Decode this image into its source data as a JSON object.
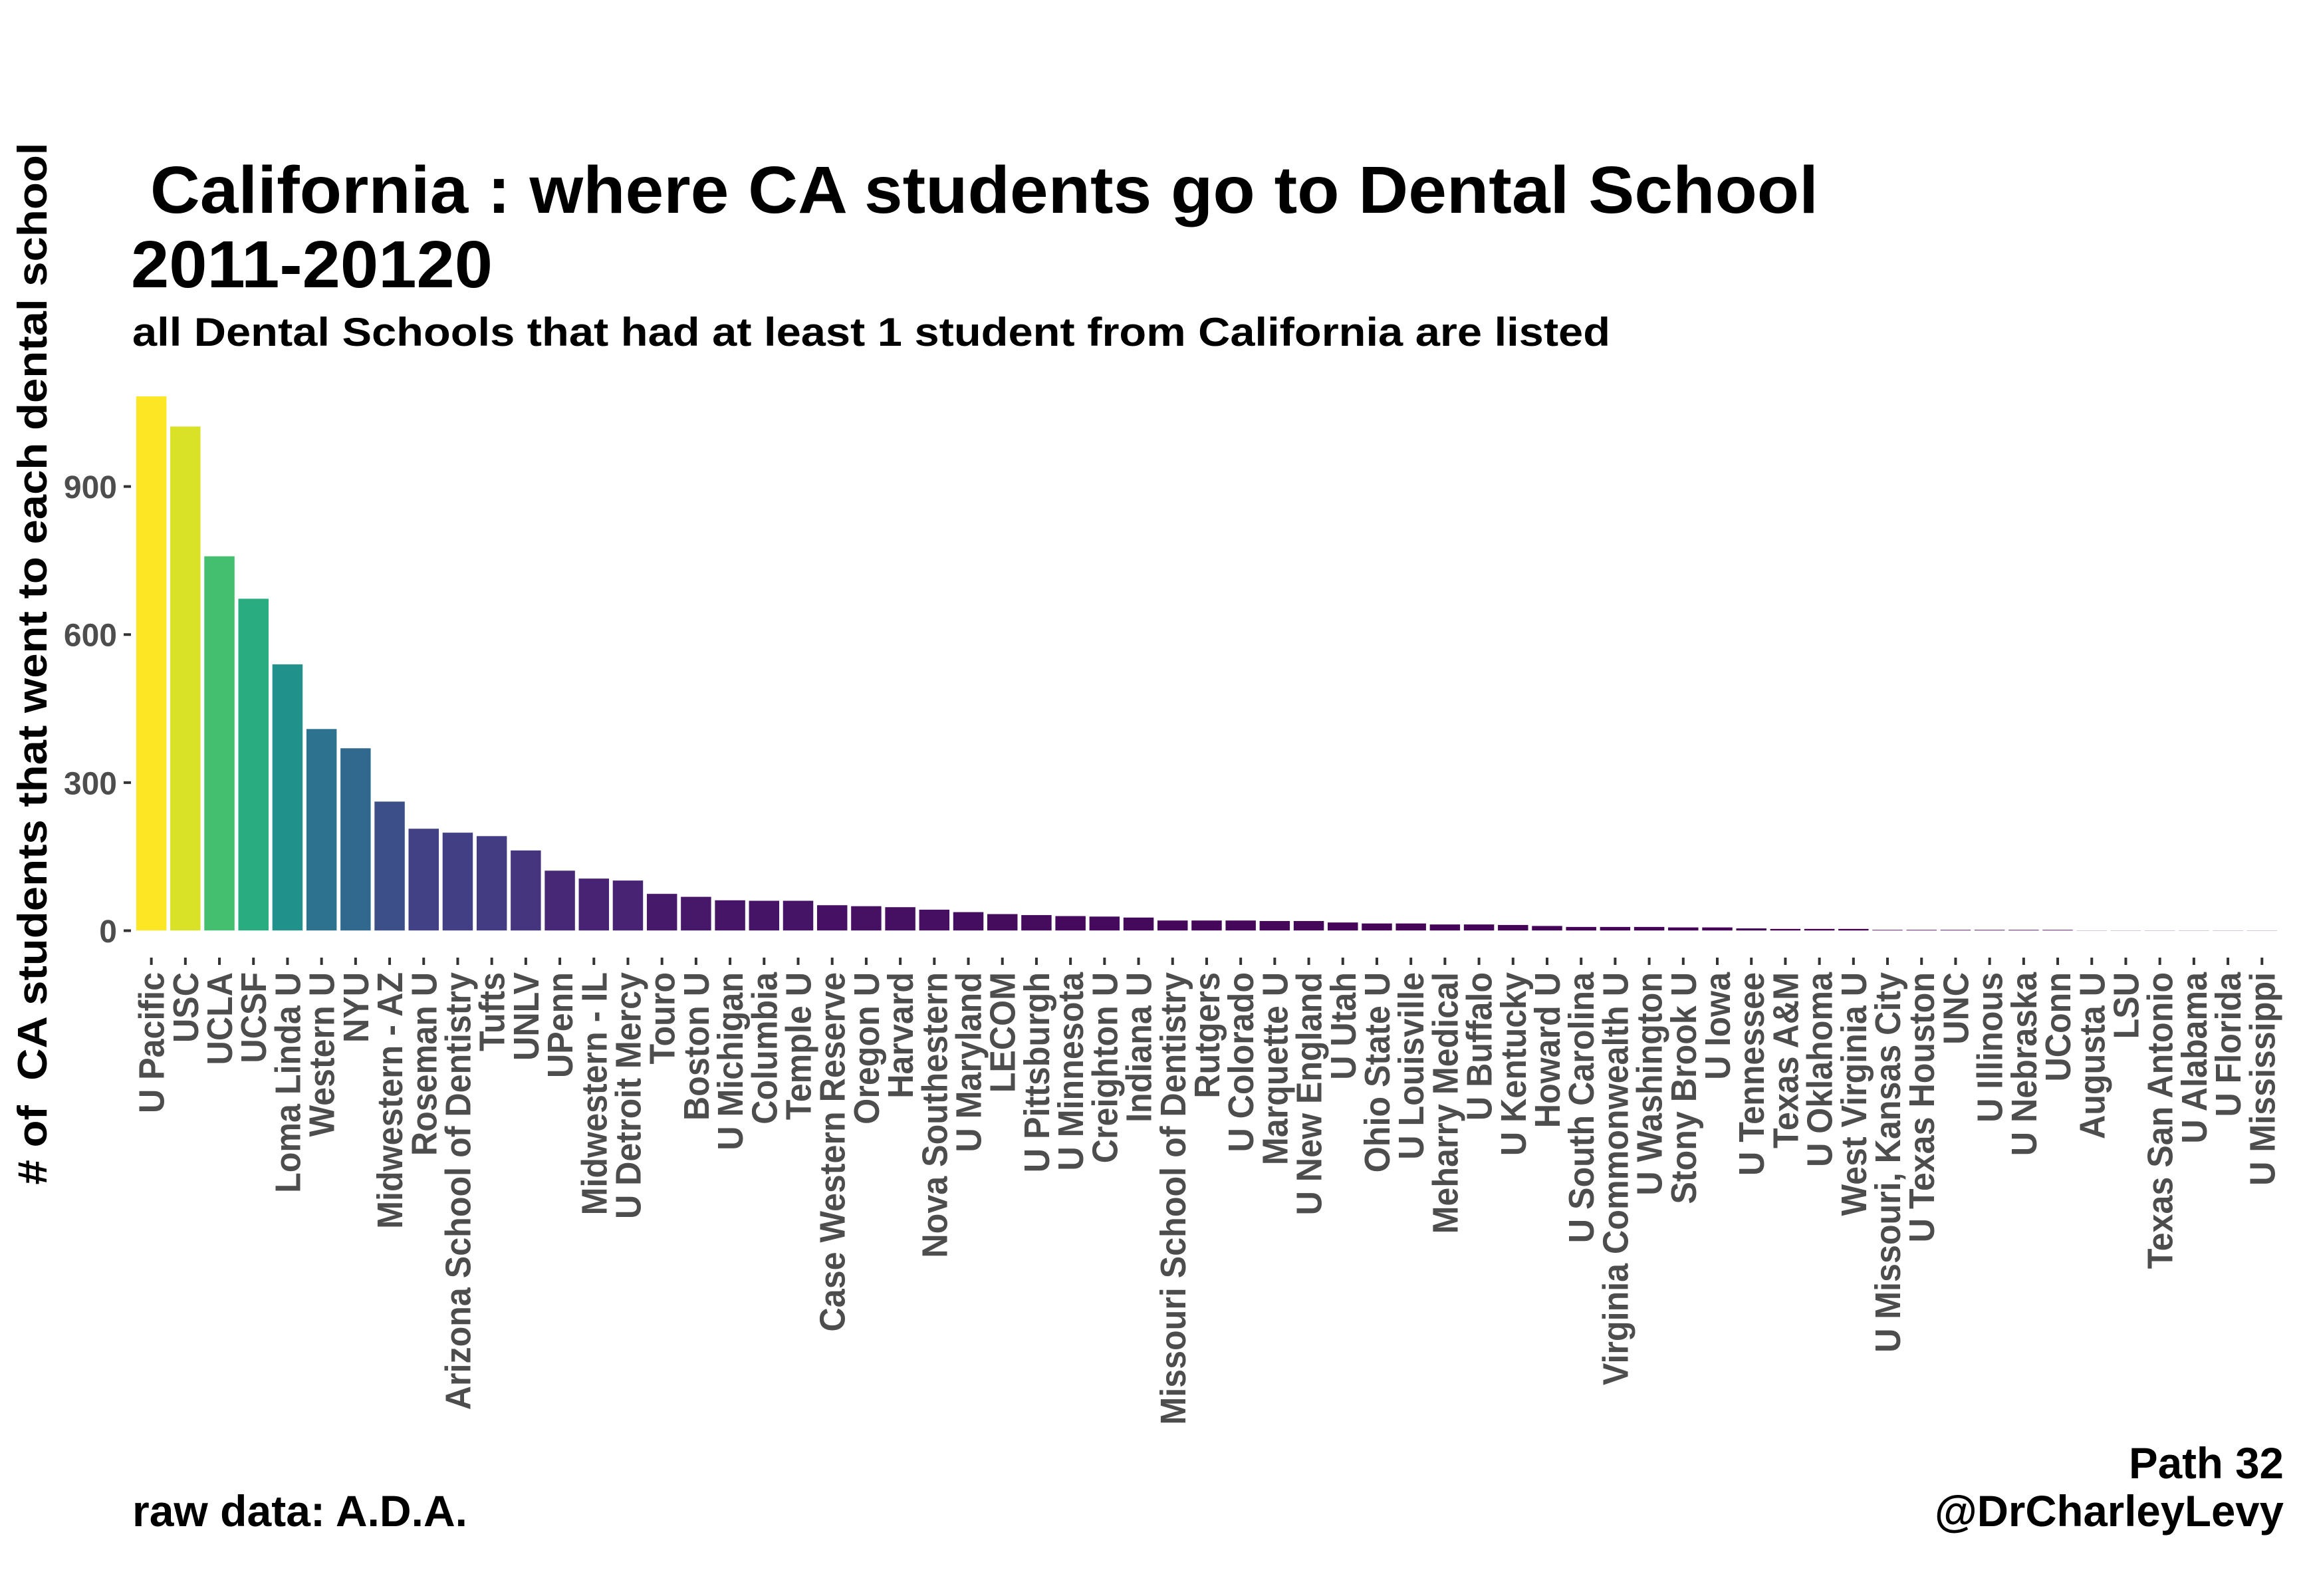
{
  "chart_data": {
    "type": "bar",
    "title": " California : where CA students go to Dental School",
    "title_line2": "2011-20120",
    "subtitle": "all Dental Schools that had at least 1 student from California are listed",
    "xlabel": "",
    "ylabel": "# of  CA students that went to each dental school",
    "ylim": [
      0,
      1083
    ],
    "yticks": [
      0,
      300,
      600,
      900
    ],
    "grid": false,
    "legend": "none",
    "colormap": [
      "#440154",
      "#482475",
      "#414487",
      "#355F8D",
      "#2A788E",
      "#21918C",
      "#22A884",
      "#44BF70",
      "#7AD151",
      "#BDDF26",
      "#FDE725"
    ],
    "categories": [
      "U Pacific",
      "USC",
      "UCLA",
      "UCSF",
      "Loma Linda U",
      "Western U",
      "NYU",
      "Midwestern - AZ",
      "Roseman U",
      "Arizona School of Dentistry",
      "Tufts",
      "UNLV",
      "UPenn",
      "Midwestern - IL",
      "U Detroit Mercy",
      "Touro",
      "Boston U",
      "U Michigan",
      "Columbia",
      "Temple U",
      "Case Western Reserve",
      "Oregon U",
      "Harvard",
      "Nova Southestern",
      "U Maryland",
      "LECOM",
      "U Pittsburgh",
      "U Minnesota",
      "Creighton U",
      "Indiana U",
      "Missouri School of Dentistry",
      "Rutgers",
      "U Colorado",
      "Marquette U",
      "U New England",
      "U Utah",
      "Ohio State U",
      "U Louisville",
      "Meharry Medical",
      "U Buffalo",
      "U Kentucky",
      "Howard U",
      "U South Carolina",
      "Virginia Commonwealth U",
      "U Washington",
      "Stony Brook U",
      "U Iowa",
      "U Tennessee",
      "Texas A&M",
      "U Oklahoma",
      "West Virginia U",
      "U Missouri, Kansas City",
      "U Texas Houston",
      "UNC",
      "U Illinous",
      "U Nebraska",
      "UConn",
      "Augusta U",
      "LSU",
      "Texas San Antonio",
      "U Alabama",
      "U Florida",
      "U Mississippi"
    ],
    "values": [
      1083,
      1022,
      759,
      673,
      540,
      409,
      370,
      262,
      207,
      199,
      192,
      163,
      122,
      106,
      102,
      75,
      69,
      62,
      61,
      61,
      52,
      50,
      48,
      43,
      38,
      34,
      32,
      30,
      29,
      27,
      21,
      21,
      21,
      20,
      20,
      17,
      15,
      15,
      13,
      13,
      12,
      10,
      8,
      8,
      8,
      7,
      7,
      5,
      4,
      4,
      4,
      2,
      2,
      2,
      2,
      2,
      2,
      1,
      1,
      1,
      1,
      1,
      1
    ]
  },
  "caption": {
    "left": "raw data: A.D.A.",
    "right_line1": "Path 32",
    "right_line2": "@DrCharleyLevy"
  }
}
